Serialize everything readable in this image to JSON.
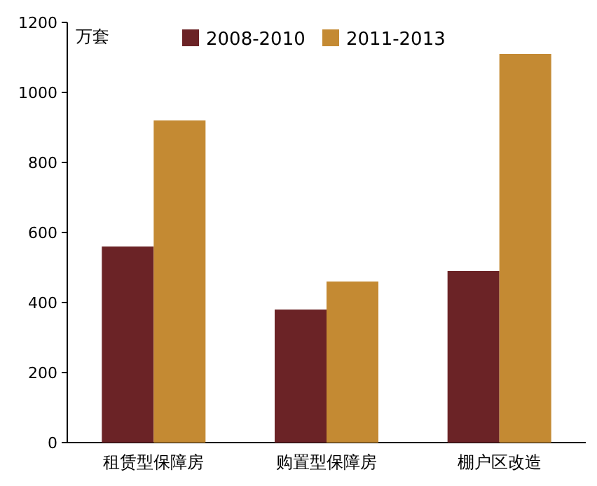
{
  "chart_data": {
    "type": "bar",
    "ylabel": "万套",
    "categories": [
      "租赁型保障房",
      "购置型保障房",
      "棚户区改造"
    ],
    "series": [
      {
        "name": "2008-2010",
        "color": "#6b2326",
        "values": [
          560,
          380,
          490
        ]
      },
      {
        "name": "2011-2013",
        "color": "#c48a33",
        "values": [
          920,
          460,
          1110
        ]
      }
    ],
    "ylim": [
      0,
      1200
    ],
    "yticks": [
      0,
      200,
      400,
      600,
      800,
      1000,
      1200
    ],
    "legend": "top"
  }
}
